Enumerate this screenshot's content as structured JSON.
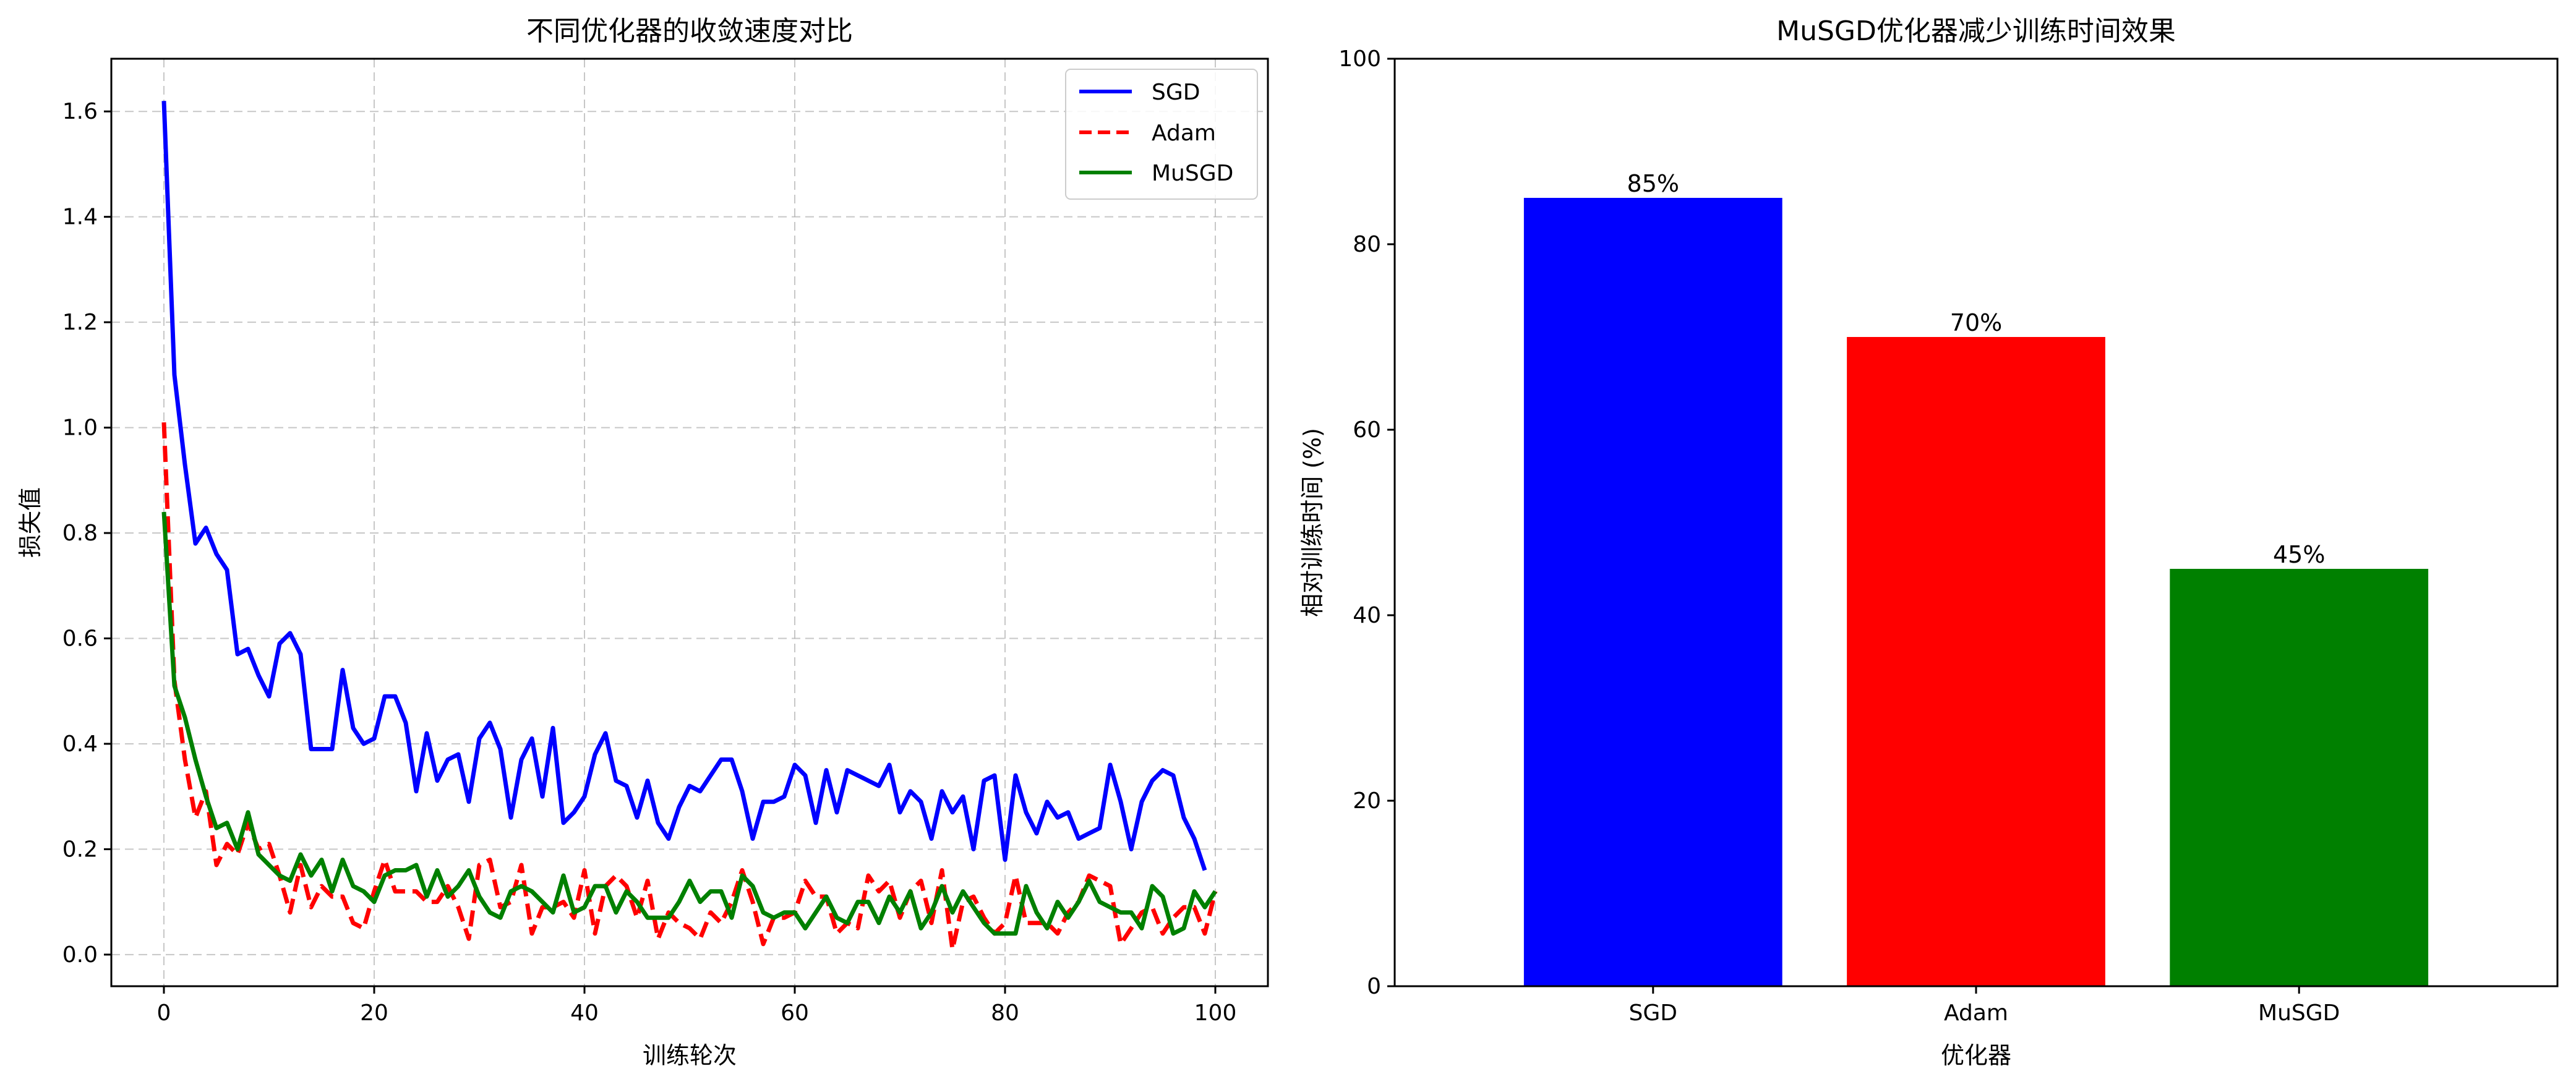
{
  "chart_data": [
    {
      "type": "line",
      "title": "不同优化器的收敛速度对比",
      "xlabel": "训练轮次",
      "ylabel": "损失值",
      "xlim": [
        -5,
        105
      ],
      "ylim": [
        -0.06,
        1.7
      ],
      "xticks": [
        0,
        20,
        40,
        60,
        80,
        100
      ],
      "yticks": [
        0.0,
        0.2,
        0.4,
        0.6,
        0.8,
        1.0,
        1.2,
        1.4,
        1.6
      ],
      "ytick_labels": [
        "0.0",
        "0.2",
        "0.4",
        "0.6",
        "0.8",
        "1.0",
        "1.2",
        "1.4",
        "1.6"
      ],
      "grid": true,
      "legend": "top-right",
      "series": [
        {
          "name": "SGD",
          "color": "#0000ff",
          "dash": "solid",
          "values": [
            1.62,
            1.1,
            0.93,
            0.78,
            0.81,
            0.76,
            0.73,
            0.57,
            0.58,
            0.53,
            0.49,
            0.59,
            0.61,
            0.57,
            0.39,
            0.39,
            0.39,
            0.54,
            0.43,
            0.4,
            0.41,
            0.49,
            0.49,
            0.44,
            0.31,
            0.42,
            0.33,
            0.37,
            0.38,
            0.29,
            0.41,
            0.44,
            0.39,
            0.26,
            0.37,
            0.41,
            0.3,
            0.43,
            0.25,
            0.27,
            0.3,
            0.38,
            0.42,
            0.33,
            0.32,
            0.26,
            0.33,
            0.25,
            0.22,
            0.28,
            0.32,
            0.31,
            0.34,
            0.37,
            0.37,
            0.31,
            0.22,
            0.29,
            0.29,
            0.3,
            0.36,
            0.34,
            0.25,
            0.35,
            0.27,
            0.35,
            0.34,
            0.33,
            0.32,
            0.36,
            0.27,
            0.31,
            0.29,
            0.22,
            0.31,
            0.27,
            0.3,
            0.2,
            0.33,
            0.34,
            0.18,
            0.34,
            0.27,
            0.23,
            0.29,
            0.26,
            0.27,
            0.22,
            0.23,
            0.24,
            0.36,
            0.29,
            0.2,
            0.29,
            0.33,
            0.35,
            0.34,
            0.26,
            0.22,
            0.16
          ]
        },
        {
          "name": "Adam",
          "color": "#ff0000",
          "dash": "dashed",
          "values": [
            1.01,
            0.52,
            0.37,
            0.26,
            0.31,
            0.17,
            0.21,
            0.19,
            0.25,
            0.2,
            0.21,
            0.15,
            0.08,
            0.17,
            0.09,
            0.13,
            0.11,
            0.11,
            0.06,
            0.05,
            0.12,
            0.18,
            0.12,
            0.12,
            0.12,
            0.1,
            0.1,
            0.13,
            0.09,
            0.03,
            0.17,
            0.18,
            0.09,
            0.1,
            0.17,
            0.04,
            0.09,
            0.09,
            0.1,
            0.07,
            0.16,
            0.04,
            0.13,
            0.15,
            0.13,
            0.07,
            0.14,
            0.03,
            0.08,
            0.06,
            0.05,
            0.03,
            0.08,
            0.06,
            0.1,
            0.16,
            0.1,
            0.02,
            0.07,
            0.07,
            0.08,
            0.14,
            0.11,
            0.11,
            0.04,
            0.06,
            0.05,
            0.15,
            0.12,
            0.14,
            0.07,
            0.12,
            0.14,
            0.06,
            0.16,
            0.01,
            0.1,
            0.11,
            0.07,
            0.04,
            0.06,
            0.15,
            0.06,
            0.06,
            0.06,
            0.04,
            0.08,
            0.1,
            0.15,
            0.14,
            0.13,
            0.02,
            0.05,
            0.08,
            0.09,
            0.04,
            0.07,
            0.09,
            0.09,
            0.04,
            0.12
          ]
        },
        {
          "name": "MuSGD",
          "color": "#008000",
          "dash": "solid",
          "values": [
            0.84,
            0.51,
            0.45,
            0.37,
            0.3,
            0.24,
            0.25,
            0.2,
            0.27,
            0.19,
            0.17,
            0.15,
            0.14,
            0.19,
            0.15,
            0.18,
            0.12,
            0.18,
            0.13,
            0.12,
            0.1,
            0.15,
            0.16,
            0.16,
            0.17,
            0.11,
            0.16,
            0.11,
            0.13,
            0.16,
            0.11,
            0.08,
            0.07,
            0.12,
            0.13,
            0.12,
            0.1,
            0.08,
            0.15,
            0.08,
            0.09,
            0.13,
            0.13,
            0.08,
            0.12,
            0.1,
            0.07,
            0.07,
            0.07,
            0.1,
            0.14,
            0.1,
            0.12,
            0.12,
            0.07,
            0.15,
            0.13,
            0.08,
            0.07,
            0.08,
            0.08,
            0.05,
            0.08,
            0.11,
            0.07,
            0.06,
            0.1,
            0.1,
            0.06,
            0.11,
            0.08,
            0.12,
            0.05,
            0.08,
            0.13,
            0.08,
            0.12,
            0.09,
            0.06,
            0.04,
            0.04,
            0.04,
            0.13,
            0.08,
            0.05,
            0.1,
            0.07,
            0.1,
            0.14,
            0.1,
            0.09,
            0.08,
            0.08,
            0.05,
            0.13,
            0.11,
            0.04,
            0.05,
            0.12,
            0.09,
            0.12
          ]
        }
      ]
    },
    {
      "type": "bar",
      "title": "MuSGD优化器减少训练时间效果",
      "xlabel": "优化器",
      "ylabel": "相对训练时间 (%)",
      "ylim": [
        0,
        100
      ],
      "yticks": [
        0,
        20,
        40,
        60,
        80,
        100
      ],
      "categories": [
        "SGD",
        "Adam",
        "MuSGD"
      ],
      "values": [
        85,
        70,
        45
      ],
      "data_labels": [
        "85%",
        "70%",
        "45%"
      ],
      "colors": [
        "#0000ff",
        "#ff0000",
        "#008000"
      ],
      "grid": false
    }
  ]
}
